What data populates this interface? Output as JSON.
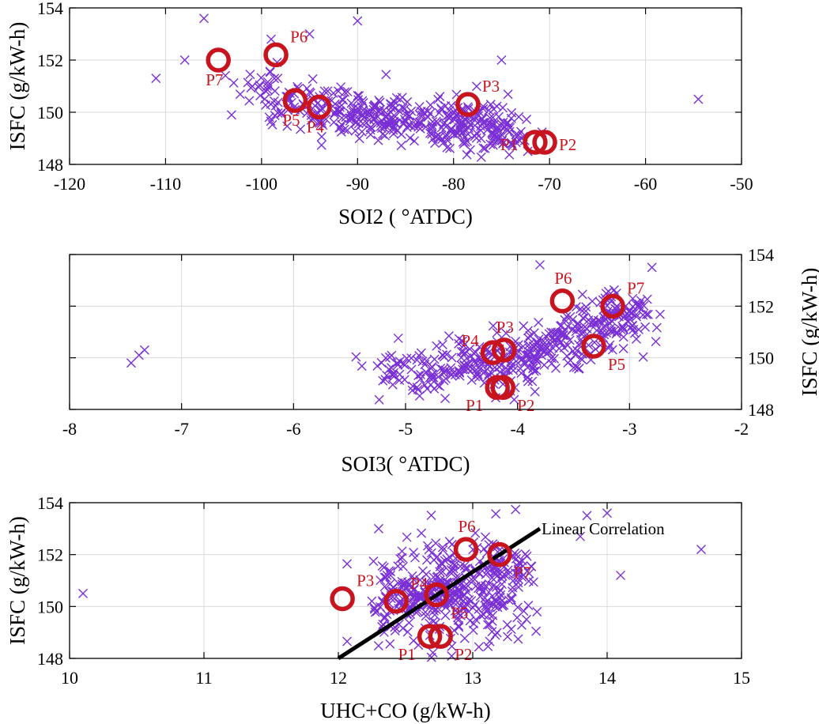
{
  "colors": {
    "cross": "#7a2fd6",
    "circle": "#c8141e",
    "line": "#000000",
    "grid": "#d9d9d9"
  },
  "chart_data": [
    {
      "type": "scatter",
      "xlabel": "SOI2 ( °ATDC)",
      "ylabel": "ISFC (g/kW-h)",
      "ylabel_side": "left",
      "xlim": [
        -120,
        -50
      ],
      "ylim": [
        148,
        154
      ],
      "xticks": [
        -120,
        -110,
        -100,
        -90,
        -80,
        -70,
        -60,
        -50
      ],
      "yticks": [
        148,
        150,
        152,
        154
      ],
      "grid": true,
      "cloud": {
        "x_center": [
          -101,
          -92,
          -86,
          -79,
          -74
        ],
        "y_center": [
          151.0,
          150.0,
          149.7,
          149.6,
          149.1
        ],
        "x_spread": 3.0,
        "y_spread": 0.45,
        "count": 420
      },
      "outliers": [
        [
          -106,
          153.6
        ],
        [
          -90,
          153.5
        ],
        [
          -111,
          151.3
        ],
        [
          -108,
          152.0
        ],
        [
          -54.5,
          150.5
        ],
        [
          -75,
          152.0
        ],
        [
          -99,
          152.8
        ],
        [
          -95,
          153.0
        ]
      ],
      "points": [
        {
          "label": "P1",
          "x": -71.5,
          "y": 148.85,
          "label_pos": "left"
        },
        {
          "label": "P2",
          "x": -70.5,
          "y": 148.85,
          "label_pos": "right"
        },
        {
          "label": "P3",
          "x": -78.5,
          "y": 150.3,
          "label_pos": "upper-right"
        },
        {
          "label": "P4",
          "x": -94.0,
          "y": 150.2,
          "label_pos": "below"
        },
        {
          "label": "P5",
          "x": -96.5,
          "y": 150.45,
          "label_pos": "below"
        },
        {
          "label": "P6",
          "x": -98.5,
          "y": 152.2,
          "label_pos": "upper-right"
        },
        {
          "label": "P7",
          "x": -104.5,
          "y": 152.0,
          "label_pos": "below"
        }
      ]
    },
    {
      "type": "scatter",
      "xlabel": "SOI3( °ATDC)",
      "ylabel": "ISFC (g/kW-h)",
      "ylabel_side": "right",
      "xlim": [
        -8,
        -2
      ],
      "ylim": [
        148,
        154
      ],
      "xticks": [
        -8,
        -7,
        -6,
        -5,
        -4,
        -3,
        -2
      ],
      "yticks": [
        148,
        150,
        152,
        154
      ],
      "grid": true,
      "cloud": {
        "x_center": [
          -5.2,
          -4.6,
          -4.1,
          -3.7,
          -3.3,
          -3.0
        ],
        "y_center": [
          149.4,
          149.6,
          149.8,
          150.4,
          151.3,
          151.8
        ],
        "x_spread": 0.25,
        "y_spread": 0.55,
        "count": 420
      },
      "outliers": [
        [
          -7.45,
          149.8
        ],
        [
          -7.38,
          150.1
        ],
        [
          -7.33,
          150.3
        ],
        [
          -2.8,
          153.5
        ],
        [
          -3.8,
          153.6
        ]
      ],
      "points": [
        {
          "label": "P1",
          "x": -4.18,
          "y": 148.85,
          "label_pos": "lower-left"
        },
        {
          "label": "P2",
          "x": -4.13,
          "y": 148.85,
          "label_pos": "lower-right"
        },
        {
          "label": "P3",
          "x": -4.12,
          "y": 150.3,
          "label_pos": "above"
        },
        {
          "label": "P4",
          "x": -4.22,
          "y": 150.2,
          "label_pos": "upper-left"
        },
        {
          "label": "P5",
          "x": -3.32,
          "y": 150.45,
          "label_pos": "lower-right"
        },
        {
          "label": "P6",
          "x": -3.6,
          "y": 152.2,
          "label_pos": "above"
        },
        {
          "label": "P7",
          "x": -3.15,
          "y": 152.0,
          "label_pos": "upper-right"
        }
      ]
    },
    {
      "type": "scatter",
      "xlabel": "UHC+CO (g/kW-h)",
      "ylabel": "ISFC (g/kW-h)",
      "ylabel_side": "left",
      "xlim": [
        10,
        15
      ],
      "ylim": [
        148,
        154
      ],
      "xticks": [
        10,
        11,
        12,
        13,
        14,
        15
      ],
      "yticks": [
        148,
        150,
        152,
        154
      ],
      "grid": true,
      "cloud": {
        "x_center": [
          12.4,
          12.7,
          13.0,
          13.3
        ],
        "y_center": [
          150.2,
          150.4,
          150.6,
          151.0
        ],
        "x_spread": 0.22,
        "y_spread": 0.9,
        "count": 420
      },
      "outliers": [
        [
          10.1,
          150.5
        ],
        [
          14.7,
          152.2
        ],
        [
          14.1,
          151.2
        ],
        [
          14.0,
          153.6
        ],
        [
          13.85,
          153.5
        ],
        [
          13.8,
          152.7
        ],
        [
          12.3,
          153.0
        ],
        [
          13.4,
          149.5
        ]
      ],
      "points": [
        {
          "label": "P1",
          "x": 12.68,
          "y": 148.85,
          "label_pos": "lower-left"
        },
        {
          "label": "P2",
          "x": 12.76,
          "y": 148.85,
          "label_pos": "lower-right"
        },
        {
          "label": "P3",
          "x": 12.03,
          "y": 150.3,
          "label_pos": "upper-right"
        },
        {
          "label": "P4",
          "x": 12.43,
          "y": 150.2,
          "label_pos": "upper-right"
        },
        {
          "label": "P5",
          "x": 12.73,
          "y": 150.45,
          "label_pos": "lower-right"
        },
        {
          "label": "P6",
          "x": 12.95,
          "y": 152.2,
          "label_pos": "above"
        },
        {
          "label": "P7",
          "x": 13.2,
          "y": 152.0,
          "label_pos": "lower-right"
        }
      ],
      "fit_line": {
        "label": "Linear Correlation",
        "x": [
          12.0,
          13.5
        ],
        "y": [
          148.0,
          153.0
        ]
      }
    }
  ]
}
